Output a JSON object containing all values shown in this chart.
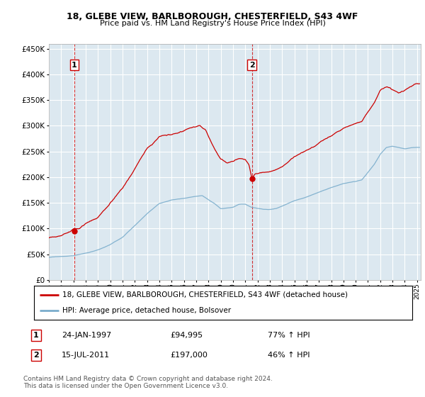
{
  "title": "18, GLEBE VIEW, BARLBOROUGH, CHESTERFIELD, S43 4WF",
  "subtitle": "Price paid vs. HM Land Registry's House Price Index (HPI)",
  "yticks": [
    0,
    50000,
    100000,
    150000,
    200000,
    250000,
    300000,
    350000,
    400000,
    450000
  ],
  "ylim": [
    0,
    460000
  ],
  "xlim_start": 1995.0,
  "xlim_end": 2025.3,
  "transaction1": {
    "date_num": 1997.07,
    "price": 94995,
    "label": "1",
    "date_str": "24-JAN-1997",
    "pct": "77% ↑ HPI"
  },
  "transaction2": {
    "date_num": 2011.54,
    "price": 197000,
    "label": "2",
    "date_str": "15-JUL-2011",
    "pct": "46% ↑ HPI"
  },
  "red_line_color": "#cc0000",
  "blue_line_color": "#7aadcc",
  "bg_color": "#dce8f0",
  "grid_color": "#ffffff",
  "legend_label1": "18, GLEBE VIEW, BARLBOROUGH, CHESTERFIELD, S43 4WF (detached house)",
  "legend_label2": "HPI: Average price, detached house, Bolsover",
  "footer": "Contains HM Land Registry data © Crown copyright and database right 2024.\nThis data is licensed under the Open Government Licence v3.0.",
  "table_rows": [
    {
      "num": "1",
      "date": "24-JAN-1997",
      "price": "£94,995",
      "pct": "77% ↑ HPI"
    },
    {
      "num": "2",
      "date": "15-JUL-2011",
      "price": "£197,000",
      "pct": "46% ↑ HPI"
    }
  ],
  "hpi_keypoints": [
    [
      1995.0,
      44000
    ],
    [
      1997.0,
      47000
    ],
    [
      1998.0,
      52000
    ],
    [
      1999.0,
      58000
    ],
    [
      2000.0,
      68000
    ],
    [
      2001.0,
      82000
    ],
    [
      2002.0,
      105000
    ],
    [
      2003.0,
      128000
    ],
    [
      2004.0,
      148000
    ],
    [
      2005.0,
      155000
    ],
    [
      2006.0,
      158000
    ],
    [
      2007.0,
      162000
    ],
    [
      2007.5,
      163000
    ],
    [
      2008.5,
      148000
    ],
    [
      2009.0,
      138000
    ],
    [
      2009.5,
      140000
    ],
    [
      2010.0,
      142000
    ],
    [
      2010.5,
      148000
    ],
    [
      2011.0,
      148000
    ],
    [
      2011.5,
      142000
    ],
    [
      2012.0,
      140000
    ],
    [
      2012.5,
      138000
    ],
    [
      2013.0,
      138000
    ],
    [
      2013.5,
      140000
    ],
    [
      2014.0,
      145000
    ],
    [
      2015.0,
      155000
    ],
    [
      2016.0,
      162000
    ],
    [
      2017.0,
      172000
    ],
    [
      2018.0,
      180000
    ],
    [
      2019.0,
      188000
    ],
    [
      2020.0,
      192000
    ],
    [
      2020.5,
      195000
    ],
    [
      2021.0,
      210000
    ],
    [
      2021.5,
      225000
    ],
    [
      2022.0,
      245000
    ],
    [
      2022.5,
      258000
    ],
    [
      2023.0,
      260000
    ],
    [
      2023.5,
      258000
    ],
    [
      2024.0,
      255000
    ],
    [
      2024.5,
      257000
    ],
    [
      2025.0,
      258000
    ]
  ],
  "red_keypoints": [
    [
      1995.0,
      82000
    ],
    [
      1995.5,
      82000
    ],
    [
      1996.0,
      84000
    ],
    [
      1997.0,
      94995
    ],
    [
      1997.5,
      96000
    ],
    [
      1998.0,
      106000
    ],
    [
      1999.0,
      120000
    ],
    [
      2000.0,
      145000
    ],
    [
      2001.0,
      175000
    ],
    [
      2002.0,
      215000
    ],
    [
      2003.0,
      255000
    ],
    [
      2004.0,
      278000
    ],
    [
      2005.0,
      283000
    ],
    [
      2006.0,
      290000
    ],
    [
      2006.5,
      296000
    ],
    [
      2007.0,
      298000
    ],
    [
      2007.3,
      300000
    ],
    [
      2007.8,
      290000
    ],
    [
      2008.0,
      278000
    ],
    [
      2008.5,
      255000
    ],
    [
      2009.0,
      235000
    ],
    [
      2009.5,
      228000
    ],
    [
      2010.0,
      232000
    ],
    [
      2010.5,
      238000
    ],
    [
      2011.0,
      235000
    ],
    [
      2011.3,
      225000
    ],
    [
      2011.54,
      197000
    ],
    [
      2011.8,
      205000
    ],
    [
      2012.0,
      205000
    ],
    [
      2012.5,
      208000
    ],
    [
      2013.0,
      210000
    ],
    [
      2013.5,
      215000
    ],
    [
      2014.0,
      220000
    ],
    [
      2015.0,
      238000
    ],
    [
      2016.0,
      252000
    ],
    [
      2017.0,
      265000
    ],
    [
      2018.0,
      280000
    ],
    [
      2019.0,
      295000
    ],
    [
      2020.0,
      305000
    ],
    [
      2020.5,
      308000
    ],
    [
      2021.0,
      325000
    ],
    [
      2021.5,
      345000
    ],
    [
      2022.0,
      368000
    ],
    [
      2022.5,
      375000
    ],
    [
      2023.0,
      370000
    ],
    [
      2023.5,
      365000
    ],
    [
      2024.0,
      372000
    ],
    [
      2024.5,
      378000
    ],
    [
      2025.0,
      382000
    ]
  ]
}
